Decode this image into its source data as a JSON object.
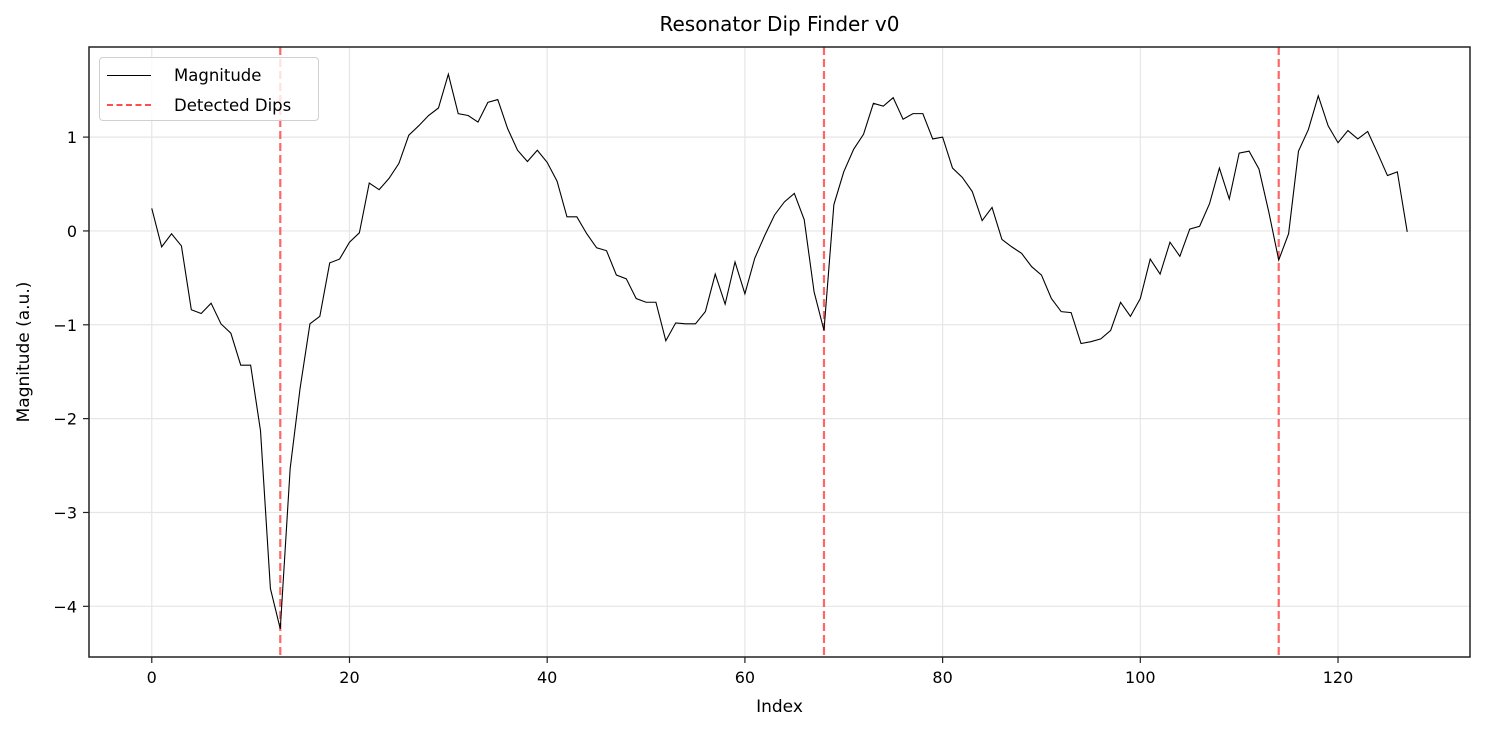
{
  "chart_data": {
    "type": "line",
    "title": "Resonator Dip Finder v0",
    "xlabel": "Index",
    "ylabel": "Magnitude (a.u.)",
    "xlim": [
      -6.35,
      133.35
    ],
    "ylim": [
      -4.54,
      1.96
    ],
    "xticks": [
      0,
      20,
      40,
      60,
      80,
      100,
      120
    ],
    "yticks": [
      -4,
      -3,
      -2,
      -1,
      0,
      1
    ],
    "ytick_labels": [
      "−4",
      "−3",
      "−2",
      "−1",
      "0",
      "1"
    ],
    "grid": true,
    "legend_position": "upper left",
    "x": [
      0,
      1,
      2,
      3,
      4,
      5,
      6,
      7,
      8,
      9,
      10,
      11,
      12,
      13,
      14,
      15,
      16,
      17,
      18,
      19,
      20,
      21,
      22,
      23,
      24,
      25,
      26,
      27,
      28,
      29,
      30,
      31,
      32,
      33,
      34,
      35,
      36,
      37,
      38,
      39,
      40,
      41,
      42,
      43,
      44,
      45,
      46,
      47,
      48,
      49,
      50,
      51,
      52,
      53,
      54,
      55,
      56,
      57,
      58,
      59,
      60,
      61,
      62,
      63,
      64,
      65,
      66,
      67,
      68,
      69,
      70,
      71,
      72,
      73,
      74,
      75,
      76,
      77,
      78,
      79,
      80,
      81,
      82,
      83,
      84,
      85,
      86,
      87,
      88,
      89,
      90,
      91,
      92,
      93,
      94,
      95,
      96,
      97,
      98,
      99,
      100,
      101,
      102,
      103,
      104,
      105,
      106,
      107,
      108,
      109,
      110,
      111,
      112,
      113,
      114,
      115,
      116,
      117,
      118,
      119,
      120,
      121,
      122,
      123,
      124,
      125,
      126,
      127
    ],
    "series": [
      {
        "name": "Magnitude",
        "style": "solid",
        "color": "#000000",
        "values": [
          0.24,
          -0.17,
          -0.03,
          -0.16,
          -0.84,
          -0.88,
          -0.77,
          -0.99,
          -1.09,
          -1.43,
          -1.43,
          -2.13,
          -3.81,
          -4.24,
          -2.53,
          -1.68,
          -0.99,
          -0.91,
          -0.34,
          -0.3,
          -0.12,
          -0.02,
          0.51,
          0.44,
          0.56,
          0.72,
          1.02,
          1.12,
          1.23,
          1.31,
          1.67,
          1.25,
          1.23,
          1.16,
          1.37,
          1.4,
          1.09,
          0.86,
          0.74,
          0.86,
          0.73,
          0.53,
          0.15,
          0.15,
          -0.03,
          -0.18,
          -0.21,
          -0.47,
          -0.51,
          -0.72,
          -0.76,
          -0.76,
          -1.17,
          -0.98,
          -0.99,
          -0.99,
          -0.86,
          -0.46,
          -0.78,
          -0.33,
          -0.67,
          -0.29,
          -0.05,
          0.17,
          0.31,
          0.4,
          0.12,
          -0.65,
          -1.06,
          0.28,
          0.63,
          0.87,
          1.03,
          1.36,
          1.33,
          1.42,
          1.19,
          1.25,
          1.25,
          0.98,
          1.0,
          0.67,
          0.57,
          0.42,
          0.11,
          0.25,
          -0.09,
          -0.17,
          -0.24,
          -0.38,
          -0.47,
          -0.72,
          -0.86,
          -0.87,
          -1.2,
          -1.18,
          -1.15,
          -1.06,
          -0.76,
          -0.91,
          -0.72,
          -0.3,
          -0.46,
          -0.12,
          -0.27,
          0.02,
          0.05,
          0.29,
          0.67,
          0.34,
          0.83,
          0.85,
          0.66,
          0.2,
          -0.31,
          -0.03,
          0.85,
          1.08,
          1.44,
          1.12,
          0.94,
          1.07,
          0.98,
          1.06,
          0.83,
          0.59,
          0.63,
          -0.01
        ]
      },
      {
        "name": "Detected Dips",
        "style": "dashed-vertical",
        "color": "#ff4040",
        "x_positions": [
          13,
          68,
          114
        ]
      }
    ]
  },
  "legend": {
    "items": [
      {
        "label": "Magnitude",
        "style": "solid"
      },
      {
        "label": "Detected Dips",
        "style": "dashed"
      }
    ]
  }
}
